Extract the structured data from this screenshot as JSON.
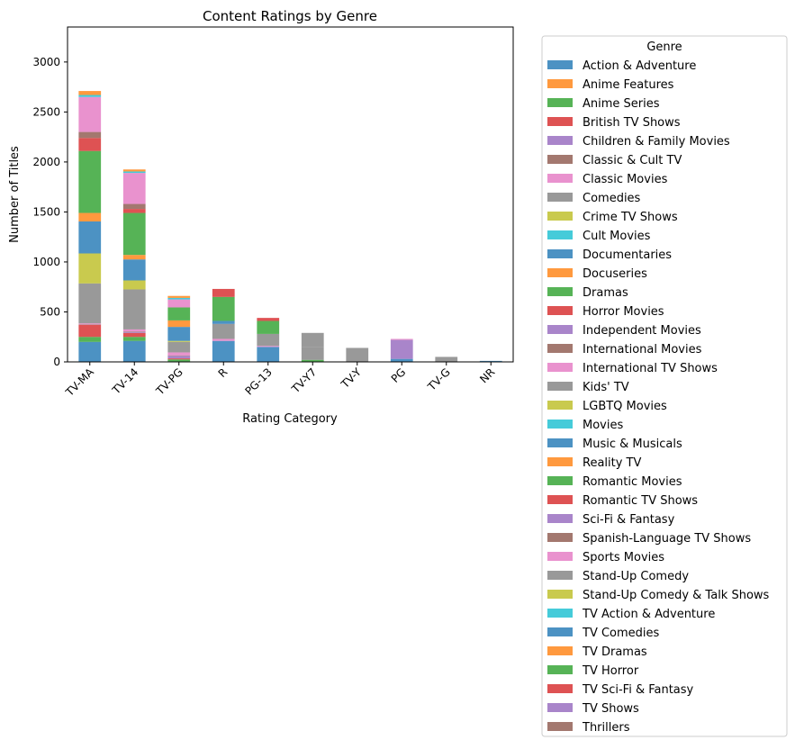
{
  "chart_data": {
    "type": "bar",
    "stacked": true,
    "title": "Content Ratings by Genre",
    "xlabel": "Rating Category",
    "ylabel": "Number of Titles",
    "ylim": [
      0,
      3350
    ],
    "yticks": [
      0,
      500,
      1000,
      1500,
      2000,
      2500,
      3000
    ],
    "grid": false,
    "legend_title": "Genre",
    "legend_position": "outside-right",
    "categories": [
      "TV-MA",
      "TV-14",
      "TV-PG",
      "R",
      "PG-13",
      "TV-Y7",
      "TV-Y",
      "PG",
      "TV-G",
      "NR"
    ],
    "series": [
      {
        "name": "Action & Adventure",
        "color": "#1f77b4",
        "values": [
          200,
          210,
          5,
          210,
          150,
          0,
          0,
          30,
          0,
          10
        ]
      },
      {
        "name": "Anime Features",
        "color": "#ff7f0e",
        "values": [
          0,
          0,
          0,
          0,
          0,
          0,
          0,
          0,
          0,
          0
        ]
      },
      {
        "name": "Anime Series",
        "color": "#2ca02c",
        "values": [
          50,
          40,
          20,
          0,
          0,
          20,
          0,
          0,
          0,
          0
        ]
      },
      {
        "name": "British TV Shows",
        "color": "#d62728",
        "values": [
          120,
          40,
          10,
          0,
          0,
          0,
          0,
          0,
          0,
          0
        ]
      },
      {
        "name": "Children & Family Movies",
        "color": "#9467bd",
        "values": [
          0,
          10,
          25,
          0,
          0,
          0,
          0,
          190,
          0,
          0
        ]
      },
      {
        "name": "Classic & Cult TV",
        "color": "#8c564b",
        "values": [
          5,
          5,
          5,
          0,
          0,
          0,
          0,
          0,
          0,
          0
        ]
      },
      {
        "name": "Classic Movies",
        "color": "#e377c2",
        "values": [
          10,
          20,
          30,
          20,
          10,
          0,
          0,
          10,
          0,
          0
        ]
      },
      {
        "name": "Comedies",
        "color": "#7f7f7f",
        "values": [
          400,
          400,
          105,
          150,
          120,
          130,
          0,
          0,
          0,
          0
        ]
      },
      {
        "name": "Crime TV Shows",
        "color": "#bcbd22",
        "values": [
          300,
          90,
          10,
          0,
          0,
          0,
          0,
          0,
          0,
          0
        ]
      },
      {
        "name": "Cult Movies",
        "color": "#17becf",
        "values": [
          0,
          0,
          0,
          0,
          0,
          0,
          0,
          0,
          0,
          0
        ]
      },
      {
        "name": "Documentaries",
        "color": "#1f77b4",
        "values": [
          320,
          210,
          140,
          30,
          0,
          0,
          0,
          0,
          0,
          0
        ]
      },
      {
        "name": "Docuseries",
        "color": "#ff7f0e",
        "values": [
          85,
          45,
          65,
          0,
          0,
          0,
          0,
          0,
          0,
          0
        ]
      },
      {
        "name": "Dramas",
        "color": "#2ca02c",
        "values": [
          620,
          420,
          130,
          240,
          130,
          0,
          0,
          0,
          0,
          0
        ]
      },
      {
        "name": "Horror Movies",
        "color": "#d62728",
        "values": [
          130,
          40,
          0,
          80,
          30,
          0,
          0,
          0,
          0,
          0
        ]
      },
      {
        "name": "Independent Movies",
        "color": "#9467bd",
        "values": [
          0,
          0,
          0,
          0,
          0,
          0,
          0,
          0,
          0,
          0
        ]
      },
      {
        "name": "International Movies",
        "color": "#8c564b",
        "values": [
          60,
          50,
          0,
          0,
          0,
          0,
          0,
          0,
          0,
          0
        ]
      },
      {
        "name": "International TV Shows",
        "color": "#e377c2",
        "values": [
          350,
          310,
          80,
          0,
          0,
          0,
          0,
          0,
          0,
          0
        ]
      },
      {
        "name": "Kids' TV",
        "color": "#7f7f7f",
        "values": [
          0,
          0,
          0,
          0,
          0,
          140,
          140,
          0,
          50,
          0
        ]
      },
      {
        "name": "LGBTQ Movies",
        "color": "#bcbd22",
        "values": [
          0,
          0,
          0,
          0,
          0,
          0,
          0,
          0,
          0,
          0
        ]
      },
      {
        "name": "Movies",
        "color": "#17becf",
        "values": [
          20,
          15,
          15,
          0,
          0,
          0,
          0,
          0,
          0,
          0
        ]
      },
      {
        "name": "Music & Musicals",
        "color": "#1f77b4",
        "values": [
          0,
          0,
          0,
          0,
          0,
          0,
          0,
          0,
          0,
          0
        ]
      },
      {
        "name": "Reality TV",
        "color": "#ff7f0e",
        "values": [
          40,
          20,
          20,
          0,
          0,
          0,
          0,
          0,
          0,
          0
        ]
      },
      {
        "name": "Romantic Movies",
        "color": "#2ca02c",
        "values": [
          0,
          0,
          0,
          0,
          0,
          0,
          0,
          0,
          0,
          0
        ]
      },
      {
        "name": "Romantic TV Shows",
        "color": "#d62728",
        "values": [
          0,
          0,
          0,
          0,
          0,
          0,
          0,
          0,
          0,
          0
        ]
      },
      {
        "name": "Sci-Fi & Fantasy",
        "color": "#9467bd",
        "values": [
          0,
          0,
          0,
          0,
          0,
          0,
          0,
          0,
          0,
          0
        ]
      },
      {
        "name": "Spanish-Language TV Shows",
        "color": "#8c564b",
        "values": [
          0,
          0,
          0,
          0,
          0,
          0,
          0,
          0,
          0,
          0
        ]
      },
      {
        "name": "Sports Movies",
        "color": "#e377c2",
        "values": [
          0,
          0,
          0,
          0,
          0,
          0,
          0,
          0,
          0,
          0
        ]
      },
      {
        "name": "Stand-Up Comedy",
        "color": "#7f7f7f",
        "values": [
          0,
          0,
          0,
          0,
          0,
          0,
          0,
          0,
          0,
          0
        ]
      },
      {
        "name": "Stand-Up Comedy & Talk Shows",
        "color": "#bcbd22",
        "values": [
          0,
          0,
          0,
          0,
          0,
          0,
          0,
          0,
          0,
          0
        ]
      },
      {
        "name": "TV Action & Adventure",
        "color": "#17becf",
        "values": [
          0,
          0,
          0,
          0,
          0,
          0,
          0,
          0,
          0,
          0
        ]
      },
      {
        "name": "TV Comedies",
        "color": "#1f77b4",
        "values": [
          0,
          0,
          0,
          0,
          0,
          0,
          0,
          0,
          0,
          0
        ]
      },
      {
        "name": "TV Dramas",
        "color": "#ff7f0e",
        "values": [
          0,
          0,
          0,
          0,
          0,
          0,
          0,
          0,
          0,
          0
        ]
      },
      {
        "name": "TV Horror",
        "color": "#2ca02c",
        "values": [
          0,
          0,
          0,
          0,
          0,
          0,
          0,
          0,
          0,
          0
        ]
      },
      {
        "name": "TV Sci-Fi & Fantasy",
        "color": "#d62728",
        "values": [
          0,
          0,
          0,
          0,
          0,
          0,
          0,
          0,
          0,
          0
        ]
      },
      {
        "name": "TV Shows",
        "color": "#9467bd",
        "values": [
          0,
          0,
          0,
          0,
          0,
          0,
          0,
          0,
          0,
          0
        ]
      },
      {
        "name": "Thrillers",
        "color": "#8c564b",
        "values": [
          0,
          0,
          0,
          0,
          0,
          0,
          0,
          0,
          0,
          0
        ]
      }
    ]
  }
}
